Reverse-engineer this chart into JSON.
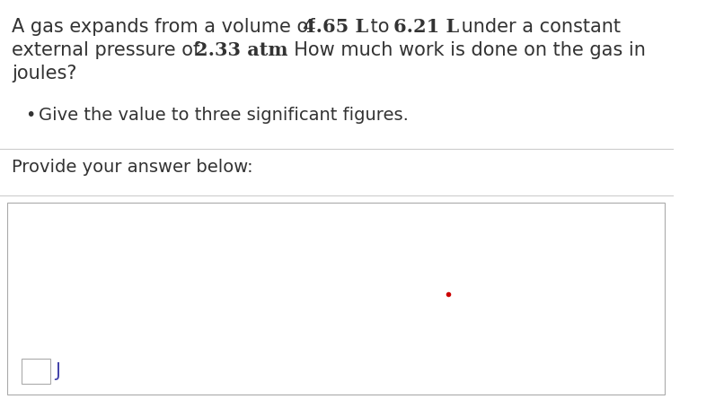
{
  "background_color": "#ffffff",
  "text_color": "#333333",
  "highlight_color": "#2b2b2b",
  "line1": "A gas expands from a volume of ",
  "line1_bold1": "4.65 L",
  "line1_mid": " to ",
  "line1_bold2": "6.21 L",
  "line1_end": " under a constant",
  "line2": "external pressure of ",
  "line2_bold": "2.33 atm",
  "line2_end": ". How much work is done on the gas in",
  "line3": "joules?",
  "bullet_text": "Give the value to three significant figures.",
  "provide_text": "Provide your answer below:",
  "unit_label": "J",
  "separator_color": "#cccccc",
  "box_border_color": "#aaaaaa",
  "red_dot_color": "#cc0000",
  "font_size_main": 15,
  "font_size_bullet": 14,
  "font_size_provide": 14
}
